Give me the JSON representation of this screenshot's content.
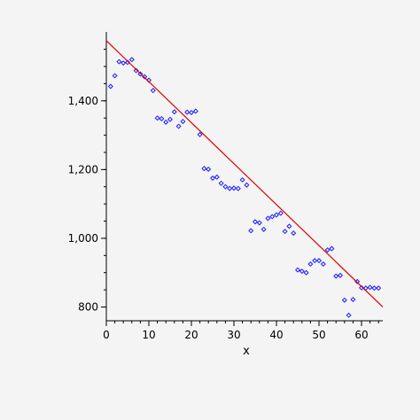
{
  "chart_data": {
    "type": "scatter",
    "title": "",
    "xlabel": "x",
    "ylabel": "",
    "xlim": [
      0,
      65
    ],
    "ylim": [
      760,
      1580
    ],
    "x_ticks": [
      0,
      10,
      20,
      30,
      40,
      50,
      60
    ],
    "x_tick_labels": [
      "0",
      "10",
      "20",
      "30",
      "40",
      "50",
      "60"
    ],
    "x_minor_step": 2,
    "y_ticks": [
      800,
      1000,
      1200,
      1400
    ],
    "y_tick_labels": [
      "800",
      "1,000",
      "1,200",
      "1,400"
    ],
    "y_minor_step": 50,
    "grid": false,
    "legend": "none",
    "colors": {
      "points": "#1a1aff",
      "fit": "#e00000",
      "axes": "#000000"
    },
    "series": [
      {
        "kind": "scatter",
        "marker": "diamond",
        "x": [
          1,
          2,
          3,
          4,
          5,
          6,
          7,
          8,
          9,
          10,
          11,
          12,
          13,
          14,
          15,
          16,
          17,
          18,
          19,
          20,
          21,
          22,
          23,
          24,
          25,
          26,
          27,
          28,
          29,
          30,
          31,
          32,
          33,
          34,
          35,
          36,
          37,
          38,
          39,
          40,
          41,
          42,
          43,
          44,
          45,
          46,
          47,
          48,
          49,
          50,
          51,
          52,
          53,
          54,
          55,
          56,
          57,
          58,
          59,
          60,
          61,
          62,
          63,
          64
        ],
        "y": [
          1442,
          1473,
          1514,
          1510,
          1512,
          1520,
          1488,
          1478,
          1470,
          1460,
          1430,
          1350,
          1348,
          1338,
          1346,
          1368,
          1326,
          1340,
          1367,
          1366,
          1370,
          1302,
          1203,
          1201,
          1175,
          1178,
          1160,
          1150,
          1145,
          1146,
          1145,
          1170,
          1155,
          1022,
          1048,
          1045,
          1026,
          1058,
          1063,
          1068,
          1073,
          1020,
          1035,
          1015,
          908,
          904,
          900,
          925,
          935,
          935,
          925,
          966,
          970,
          890,
          892,
          820,
          776,
          822,
          874,
          856,
          855,
          857,
          855,
          855
        ]
      },
      {
        "kind": "line",
        "x": [
          0,
          65
        ],
        "y": [
          1575,
          800
        ]
      }
    ]
  }
}
